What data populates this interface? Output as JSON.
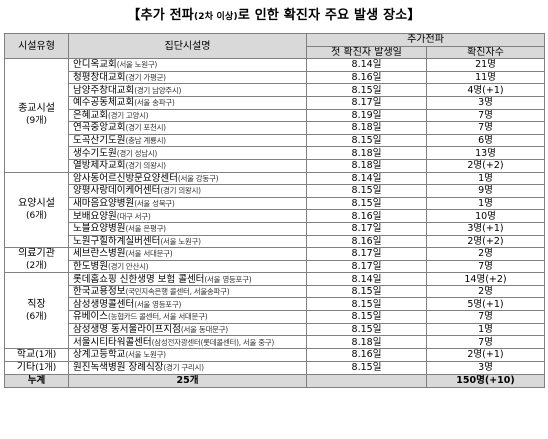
{
  "title": {
    "prefix": "【추가 전파",
    "small": "(2차 이상)",
    "suffix": "로 인한 확진자 주요 발생 장소】"
  },
  "header": {
    "type": "시설유형",
    "name": "집단시설명",
    "spread": "추가전파",
    "first_date": "첫 확진자 발생일",
    "count": "확진자수"
  },
  "groups": [
    {
      "type": "종교시설",
      "count": "(9개)",
      "rows": [
        {
          "name": "안디옥교회",
          "note": "(서울 노원구)",
          "date": "8.14일",
          "cases": "21명"
        },
        {
          "name": "청평창대교회",
          "note": "(경기 가평군)",
          "date": "8.16일",
          "cases": "11명"
        },
        {
          "name": "남양주창대교회",
          "note": "(경기 남양주시)",
          "date": "8.15일",
          "cases": "4명(+1)"
        },
        {
          "name": "예수공동체교회",
          "note": "(서울 송파구)",
          "date": "8.17일",
          "cases": "3명"
        },
        {
          "name": "은혜교회",
          "note": "(경기 고양시)",
          "date": "8.19일",
          "cases": "7명"
        },
        {
          "name": "연곡중앙교회",
          "note": "(경기 포천시)",
          "date": "8.18일",
          "cases": "7명"
        },
        {
          "name": "도곡산기도원",
          "note": "(충남 계룡시)",
          "date": "8.15일",
          "cases": "6명"
        },
        {
          "name": "생수기도원",
          "note": "(경기 성남시)",
          "date": "8.18일",
          "cases": "13명"
        },
        {
          "name": "열방제자교회",
          "note": "(경기 의왕시)",
          "date": "8.18일",
          "cases": "2명(+2)"
        }
      ]
    },
    {
      "type": "요양시설",
      "count": "(6개)",
      "rows": [
        {
          "name": "암사동어르신방문요양센터",
          "note": "(서울 강동구)",
          "date": "8.14일",
          "cases": "1명"
        },
        {
          "name": "양평사랑데이케어센터",
          "note": "(경기 의왕시)",
          "date": "8.15일",
          "cases": "9명"
        },
        {
          "name": "새마음요양병원",
          "note": "(서울 성북구)",
          "date": "8.15일",
          "cases": "1명"
        },
        {
          "name": "보배요양원",
          "note": "(대구 서구)",
          "date": "8.16일",
          "cases": "10명"
        },
        {
          "name": "노블요양병원",
          "note": "(서울 은평구)",
          "date": "8.17일",
          "cases": "3명(+1)"
        },
        {
          "name": "노원구힐하계실버센터",
          "note": "(서울 노원구)",
          "date": "8.16일",
          "cases": "2명(+2)"
        }
      ]
    },
    {
      "type": "의료기관",
      "count": "(2개)",
      "rows": [
        {
          "name": "세브란스병원",
          "note": "(서울 서대문구)",
          "date": "8.17일",
          "cases": "2명"
        },
        {
          "name": "한도병원",
          "note": "(경기 안산시)",
          "date": "8.17일",
          "cases": "7명"
        }
      ]
    },
    {
      "type": "직장",
      "count": "(6개)",
      "rows": [
        {
          "name": "롯데홈쇼핑 신한생명 보험 콜센터",
          "note": "(서울 영등포구)",
          "date": "8.14일",
          "cases": "14명(+2)"
        },
        {
          "name": "한국교용정보",
          "note": "(국민지속은행 콜센터, 서울송파구)",
          "date": "8.15일",
          "cases": "2명"
        },
        {
          "name": "삼성생명콜센터",
          "note": "(서울 영등포구)",
          "date": "8.15일",
          "cases": "5명(+1)"
        },
        {
          "name": "유베이스",
          "note": "(농협카드 콜센터, 서울 서대문구)",
          "date": "8.15일",
          "cases": "7명"
        },
        {
          "name": "삼성생명 동서울라이프지점",
          "note": "(서울 동대문구)",
          "date": "8.15일",
          "cases": "1명"
        },
        {
          "name": "서울시티타워콜센터",
          "note": "(삼성전자광센터(롯데콜센터), 서울 중구)",
          "date": "8.18일",
          "cases": "7명"
        }
      ]
    },
    {
      "type": "학교",
      "count": "(1개)",
      "inline": true,
      "rows": [
        {
          "name": "상계고등학교",
          "note": "(서울 노원구)",
          "date": "8.16일",
          "cases": "2명(+1)"
        }
      ]
    },
    {
      "type": "기타",
      "count": "(1개)",
      "inline": true,
      "rows": [
        {
          "name": "원진녹색병원 장례식장",
          "note": "(경기 구리시)",
          "date": "8.15일",
          "cases": "3명"
        }
      ]
    }
  ],
  "total": {
    "label": "누계",
    "facilities": "25개",
    "cases": "150명(+10)"
  }
}
